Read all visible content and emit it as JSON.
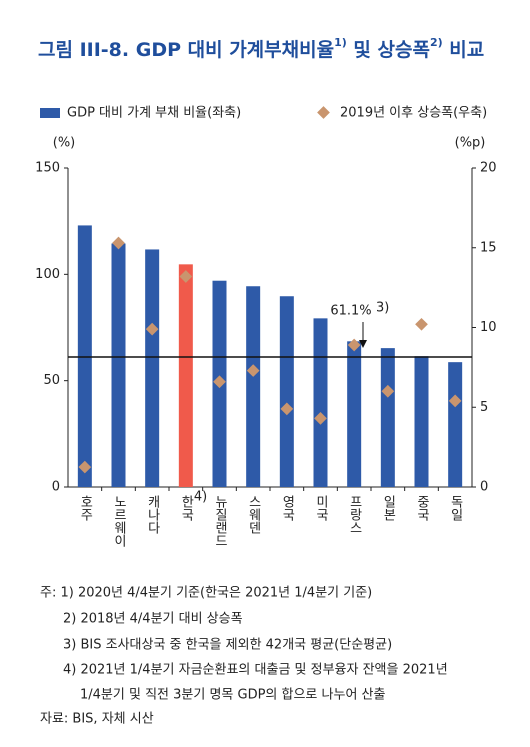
{
  "chart_data": {
    "type": "bar",
    "title": [
      "그림 III-8. GDP 대비 가계부채비율",
      "1)",
      " 및 상승폭",
      "2)",
      " 비교"
    ],
    "categories": [
      "호주",
      "노르웨이",
      "캐나다",
      "한국",
      "뉴질랜드",
      "스웨덴",
      "영국",
      "미국",
      "프랑스",
      "일본",
      "중국",
      "독일"
    ],
    "category_note": {
      "index": 3,
      "text": "4)"
    },
    "y_unit": "(%)",
    "y2_unit": "(%p)",
    "ylim": [
      0,
      150
    ],
    "yticks": [
      0,
      50,
      100,
      150
    ],
    "y2lim": [
      0,
      20
    ],
    "y2ticks": [
      0,
      5,
      10,
      15,
      20
    ],
    "series": [
      {
        "name": "GDP 대비 가계 부채 비율(좌축)",
        "type": "bar",
        "color": "#2e5aa8",
        "highlight": {
          "index": 3,
          "color": "#f05a4b"
        },
        "values": [
          123,
          114.5,
          111.7,
          104.7,
          97,
          94.4,
          89.7,
          79.3,
          68.5,
          65.3,
          61.5,
          58.7
        ]
      },
      {
        "name": "2019년 이후 상승폭(우축)",
        "type": "scatter",
        "axis": "y2",
        "color": "#c9956e",
        "values": [
          1.25,
          15.3,
          9.9,
          13.2,
          6.6,
          7.3,
          4.9,
          4.3,
          8.9,
          6.0,
          10.2,
          5.4
        ]
      }
    ],
    "reference_line": {
      "value": 61.1,
      "label": "61.1%",
      "note": "3)"
    },
    "notes": [
      "주: 1) 2020년 4/4분기 기준(한국은 2021년 1/4분기 기준)",
      "2) 2018년 4/4분기 대비 상승폭",
      "3) BIS 조사대상국 중 한국을 제외한 42개국 평균(단순평균)",
      "4) 2021년 1/4분기 자금순환표의 대출금 및 정부융자 잔액을 2021년",
      "1/4분기 및 직전 3분기 명목 GDP의 합으로 나누어 산출",
      "자료: BIS, 자체 시산"
    ]
  }
}
